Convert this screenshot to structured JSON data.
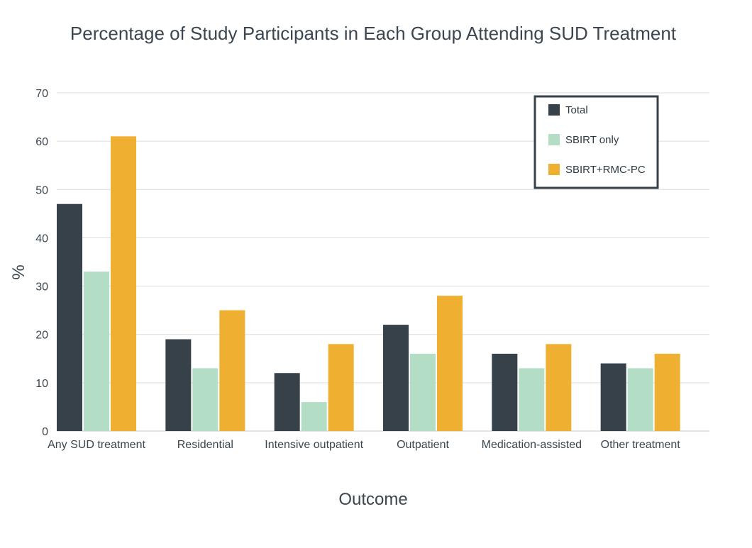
{
  "chart_data": {
    "type": "bar",
    "title": "Percentage of Study Participants in Each Group Attending SUD Treatment",
    "xlabel": "Outcome",
    "ylabel": "%",
    "ylim": [
      0,
      70
    ],
    "yticks": [
      0,
      10,
      20,
      30,
      40,
      50,
      60,
      70
    ],
    "grid": true,
    "legend_position": "top-right",
    "categories": [
      "Any SUD treatment",
      "Residential",
      "Intensive outpatient",
      "Outpatient",
      "Medication-assisted",
      "Other treatment"
    ],
    "series": [
      {
        "name": "Total",
        "color": "#36414a",
        "values": [
          47,
          19,
          12,
          22,
          16,
          14
        ]
      },
      {
        "name": "SBIRT only",
        "color": "#b3dec5",
        "values": [
          33,
          13,
          6,
          16,
          13,
          13
        ]
      },
      {
        "name": "SBIRT+RMC-PC",
        "color": "#efaf31",
        "values": [
          61,
          25,
          18,
          28,
          18,
          16
        ]
      }
    ]
  }
}
